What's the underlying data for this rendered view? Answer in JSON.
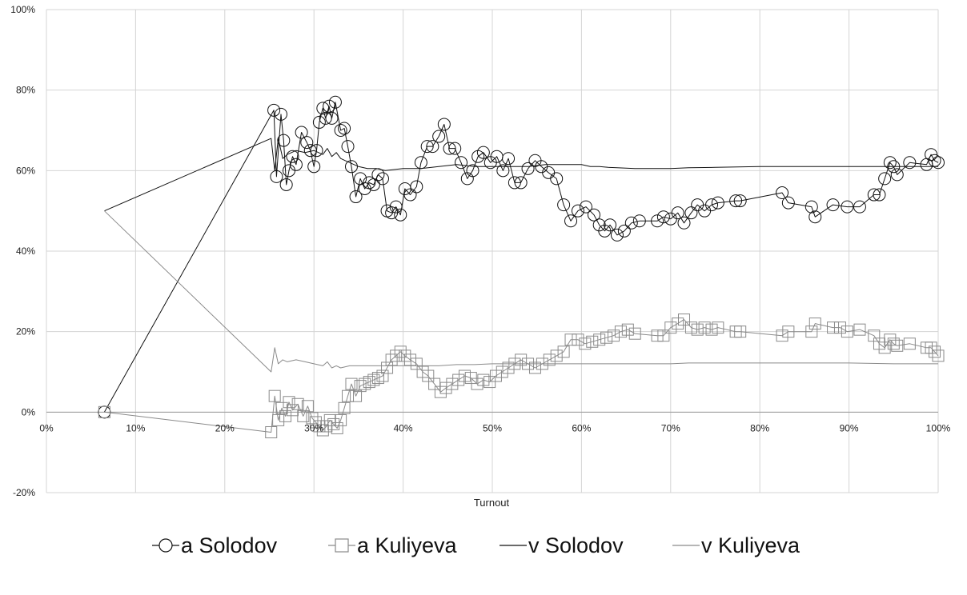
{
  "chart_data": {
    "type": "line",
    "xlabel": "Turnout",
    "ylabel": "",
    "xlim": [
      0,
      100
    ],
    "ylim": [
      -20,
      100
    ],
    "x_ticks": [
      "0%",
      "10%",
      "20%",
      "30%",
      "40%",
      "50%",
      "60%",
      "70%",
      "80%",
      "90%",
      "100%"
    ],
    "y_ticks": [
      "-20%",
      "0%",
      "20%",
      "40%",
      "60%",
      "80%",
      "100%"
    ],
    "grid": true,
    "legend_position": "bottom",
    "series": [
      {
        "name": "a Solodov",
        "marker": "circle",
        "color": "#111111",
        "line_width": 1,
        "x": [
          6.5,
          25.5,
          25.8,
          26.3,
          26.6,
          26.9,
          27.2,
          27.6,
          28.0,
          28.6,
          29.2,
          29.6,
          30.0,
          30.3,
          30.6,
          31.0,
          31.3,
          31.7,
          32.0,
          32.4,
          33.0,
          33.4,
          33.8,
          34.2,
          34.7,
          35.2,
          35.7,
          36.2,
          36.7,
          37.2,
          37.7,
          38.2,
          38.7,
          39.2,
          39.7,
          40.2,
          40.8,
          41.5,
          42.0,
          42.7,
          43.3,
          44.0,
          44.6,
          45.2,
          45.8,
          46.5,
          47.2,
          47.8,
          48.4,
          49.0,
          49.8,
          50.5,
          51.2,
          51.8,
          52.5,
          53.2,
          54.0,
          54.8,
          55.5,
          56.3,
          57.2,
          58.0,
          58.8,
          59.6,
          60.5,
          61.4,
          62.0,
          62.6,
          63.2,
          64.0,
          64.8,
          65.6,
          66.5,
          68.5,
          69.2,
          70.0,
          70.8,
          71.5,
          72.3,
          73.0,
          73.8,
          74.6,
          75.3,
          77.3,
          77.8,
          82.5,
          83.2,
          85.8,
          86.2,
          88.2,
          89.8,
          91.2,
          92.8,
          93.4,
          94.0,
          94.6,
          95.0,
          95.4,
          96.8,
          98.7,
          99.2,
          99.6,
          100
        ],
        "y": [
          0,
          75,
          58.5,
          74,
          67.5,
          56.5,
          60,
          63.5,
          61.5,
          69.5,
          67,
          65,
          61,
          65,
          72,
          75.5,
          73,
          76,
          73,
          77,
          70,
          70.5,
          66,
          61,
          53.5,
          58,
          55.5,
          57,
          56.5,
          59,
          58,
          50,
          49.5,
          51,
          49,
          55.5,
          54,
          56,
          62,
          66,
          66,
          68.5,
          71.5,
          65.5,
          65.5,
          62,
          58,
          60,
          63.5,
          64.5,
          62,
          63.5,
          60,
          63,
          57,
          57,
          60.5,
          62.5,
          61,
          59.5,
          58,
          51.5,
          47.5,
          50,
          51,
          49,
          46.5,
          45,
          46.5,
          44,
          45,
          47,
          47.5,
          47.5,
          48.5,
          48,
          49.5,
          47,
          49.5,
          51.5,
          50,
          51.5,
          52,
          52.5,
          52.5,
          54.5,
          52,
          51,
          48.5,
          51.5,
          51,
          51,
          54,
          54,
          58,
          62,
          61,
          59,
          62,
          61.5,
          64,
          62.5,
          62
        ]
      },
      {
        "name": "a Kuliyeva",
        "marker": "square",
        "color": "#8a8a8a",
        "line_width": 1,
        "x": [
          6.5,
          25.2,
          25.6,
          26.0,
          26.4,
          26.8,
          27.2,
          27.6,
          28.2,
          28.8,
          29.3,
          29.8,
          30.2,
          30.6,
          31.0,
          31.4,
          31.8,
          32.2,
          32.6,
          33.0,
          33.4,
          33.8,
          34.2,
          34.7,
          35.2,
          35.7,
          36.2,
          36.7,
          37.2,
          37.7,
          38.2,
          38.7,
          39.2,
          39.7,
          40.2,
          40.8,
          41.5,
          42.2,
          42.8,
          43.5,
          44.2,
          44.8,
          45.5,
          46.2,
          46.9,
          47.6,
          48.3,
          49.0,
          49.7,
          50.4,
          51.1,
          51.8,
          52.5,
          53.2,
          54.0,
          54.8,
          55.6,
          56.4,
          57.2,
          58.0,
          58.8,
          59.6,
          60.4,
          61.2,
          62.0,
          62.8,
          63.6,
          64.4,
          65.2,
          66.0,
          68.5,
          69.2,
          70.0,
          70.8,
          71.5,
          72.3,
          73.0,
          73.8,
          74.6,
          75.3,
          77.3,
          77.8,
          82.5,
          83.2,
          85.8,
          86.2,
          88.2,
          89.0,
          89.8,
          91.2,
          92.8,
          93.4,
          94.0,
          94.6,
          95.0,
          95.4,
          96.8,
          98.7,
          99.2,
          99.6,
          100
        ],
        "y": [
          0,
          -5,
          4,
          -2,
          1,
          -1,
          2.5,
          0.5,
          2,
          -1,
          1.5,
          -1.5,
          -2.5,
          -3.5,
          -4.5,
          -3.5,
          -2,
          -3,
          -4,
          -2,
          1,
          4,
          7,
          4,
          6.5,
          7,
          7.5,
          8,
          8.5,
          9,
          11,
          13,
          14,
          15,
          14,
          13,
          12,
          10,
          9,
          7,
          5,
          6,
          7,
          8,
          9,
          8.5,
          7,
          8,
          7.5,
          9,
          10,
          11,
          12,
          13,
          12,
          11,
          12,
          13,
          14,
          15,
          18,
          18,
          17,
          17.5,
          18,
          18.5,
          19,
          20,
          20.5,
          19.5,
          19,
          19,
          21,
          22,
          23,
          21,
          20.5,
          21,
          20.5,
          21,
          20,
          20,
          19,
          20,
          20,
          22,
          21,
          21,
          20,
          20.5,
          19,
          17,
          16,
          18,
          17,
          16.5,
          17,
          16,
          16,
          15,
          14
        ]
      },
      {
        "name": "v Solodov",
        "marker": "none",
        "color": "#111111",
        "line_width": 1,
        "x": [
          6.5,
          25.2,
          25.6,
          26.0,
          26.5,
          27.0,
          28.0,
          29.0,
          30.0,
          31.0,
          31.5,
          32.0,
          32.5,
          33.0,
          33.5,
          34.0,
          35.0,
          36.0,
          37.0,
          38.0,
          40.0,
          42.0,
          44.0,
          46.0,
          48.0,
          50.0,
          52.0,
          54.0,
          56.0,
          58.0,
          60.0,
          61.0,
          62.0,
          63.0,
          64.0,
          66.0,
          68.0,
          70.0,
          72.0,
          75.0,
          80.0,
          85.0,
          90.0,
          95.0,
          98.0,
          99.0,
          100
        ],
        "y": [
          50,
          68,
          60,
          68,
          63,
          64,
          65,
          64.5,
          65,
          64,
          65.5,
          63.5,
          64.5,
          63,
          62.5,
          62,
          61,
          60.5,
          60.5,
          60,
          60.5,
          60.5,
          61,
          61.5,
          61,
          61,
          61,
          61,
          61.5,
          61.5,
          61.5,
          61,
          61,
          60.8,
          60.7,
          60.5,
          60.5,
          60.5,
          60.7,
          60.8,
          61,
          61,
          61,
          61,
          61,
          61,
          61
        ]
      },
      {
        "name": "v Kuliyeva",
        "marker": "none",
        "color": "#8a8a8a",
        "line_width": 1,
        "x": [
          6.5,
          25.2,
          25.6,
          26.0,
          26.5,
          27.0,
          28.0,
          29.0,
          30.0,
          31.0,
          31.5,
          32.0,
          32.5,
          33.0,
          34.0,
          35.0,
          36.0,
          37.0,
          38.0,
          40.0,
          42.0,
          44.0,
          46.0,
          48.0,
          50.0,
          52.0,
          54.0,
          56.0,
          58.0,
          60.0,
          62.0,
          64.0,
          66.0,
          68.0,
          70.0,
          72.0,
          75.0,
          80.0,
          85.0,
          90.0,
          95.0,
          98.0,
          99.0,
          100
        ],
        "y": [
          50,
          10,
          16,
          12,
          13,
          12.5,
          13,
          12.5,
          12,
          11.5,
          12.5,
          11,
          11.5,
          11,
          11.5,
          11.5,
          11.5,
          11.5,
          11.5,
          11.5,
          11.5,
          11.5,
          11.8,
          11.8,
          12,
          12,
          12,
          12,
          12,
          12,
          12,
          12,
          12,
          12,
          12,
          12.2,
          12.2,
          12.2,
          12.2,
          12.2,
          12,
          12,
          12,
          12
        ]
      }
    ]
  }
}
